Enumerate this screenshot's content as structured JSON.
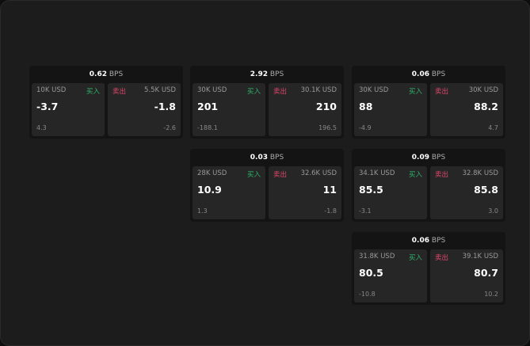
{
  "unit": "BPS",
  "buy_label": "买入",
  "sell_label": "卖出",
  "colors": {
    "buy": "#2fb36a",
    "sell": "#e0466b"
  },
  "cards": [
    {
      "spread": "0.62",
      "bid": {
        "size": "10K USD",
        "price": "-3.7",
        "change": "4.3"
      },
      "ask": {
        "size": "5.5K USD",
        "price": "-1.8",
        "change": "-2.6"
      }
    },
    {
      "spread": "2.92",
      "bid": {
        "size": "30K USD",
        "price": "201",
        "change": "-188.1"
      },
      "ask": {
        "size": "30.1K USD",
        "price": "210",
        "change": "196.5"
      }
    },
    {
      "spread": "0.06",
      "bid": {
        "size": "30K USD",
        "price": "88",
        "change": "-4.9"
      },
      "ask": {
        "size": "30K USD",
        "price": "88.2",
        "change": "4.7"
      }
    },
    {
      "spread": "0.03",
      "bid": {
        "size": "28K USD",
        "price": "10.9",
        "change": "1.3"
      },
      "ask": {
        "size": "32.6K USD",
        "price": "11",
        "change": "-1.8"
      }
    },
    {
      "spread": "0.09",
      "bid": {
        "size": "34.1K USD",
        "price": "85.5",
        "change": "-3.1"
      },
      "ask": {
        "size": "32.8K USD",
        "price": "85.8",
        "change": "3.0"
      }
    },
    {
      "spread": "0.06",
      "bid": {
        "size": "31.8K USD",
        "price": "80.5",
        "change": "-10.8"
      },
      "ask": {
        "size": "39.1K USD",
        "price": "80.7",
        "change": "10.2"
      }
    }
  ]
}
